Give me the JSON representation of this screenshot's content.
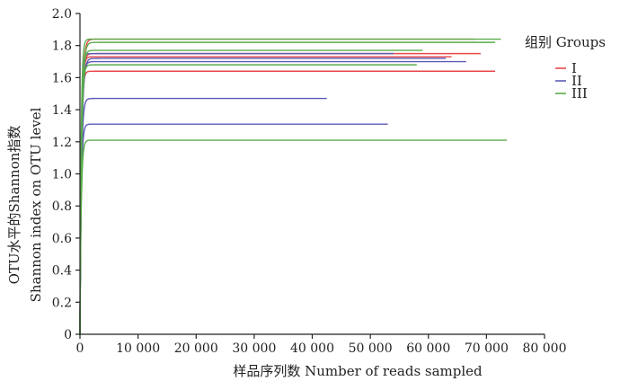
{
  "chart_data": {
    "type": "line",
    "title": "",
    "xlabel": "样品序列数  Number of reads sampled",
    "ylabel_line1": "OTU水平的Shannon指数",
    "ylabel_line2": "Shannon index on  OTU level",
    "xlim": [
      0,
      80000
    ],
    "ylim": [
      0,
      2.0
    ],
    "x_ticks": [
      0,
      10000,
      20000,
      30000,
      40000,
      50000,
      60000,
      70000,
      80000
    ],
    "x_tick_labels": [
      "0",
      "10 000",
      "20 000",
      "30 000",
      "40 000",
      "50 000",
      "60 000",
      "70 000",
      "80 000"
    ],
    "y_ticks": [
      0,
      0.2,
      0.4,
      0.6,
      0.8,
      1.0,
      1.2,
      1.4,
      1.6,
      1.8,
      2.0
    ],
    "y_tick_labels": [
      "0",
      "0.2",
      "0.4",
      "0.6",
      "0.8",
      "1.0",
      "1.2",
      "1.4",
      "1.6",
      "1.8",
      "2.0"
    ],
    "grid": false,
    "legend": {
      "title": "组别  Groups",
      "placement": "right",
      "entries": [
        {
          "label": "I",
          "color": "#e8474a"
        },
        {
          "label": "II",
          "color": "#5b5bb5"
        },
        {
          "label": "III",
          "color": "#5aac4a"
        }
      ]
    },
    "series": [
      {
        "group": "I",
        "color": "#e8474a",
        "plateau": 1.84,
        "max_x": 68000
      },
      {
        "group": "I",
        "color": "#e8474a",
        "plateau": 1.75,
        "max_x": 69000
      },
      {
        "group": "I",
        "color": "#e8474a",
        "plateau": 1.73,
        "max_x": 64000
      },
      {
        "group": "I",
        "color": "#e8474a",
        "plateau": 1.64,
        "max_x": 71500
      },
      {
        "group": "II",
        "color": "#5b5bb5",
        "plateau": 1.75,
        "max_x": 54000
      },
      {
        "group": "II",
        "color": "#5b5bb5",
        "plateau": 1.72,
        "max_x": 63000
      },
      {
        "group": "II",
        "color": "#5b5bb5",
        "plateau": 1.7,
        "max_x": 66500
      },
      {
        "group": "II",
        "color": "#5b5bb5",
        "plateau": 1.47,
        "max_x": 42500
      },
      {
        "group": "II",
        "color": "#5b5bb5",
        "plateau": 1.31,
        "max_x": 53000
      },
      {
        "group": "III",
        "color": "#5aac4a",
        "plateau": 1.84,
        "max_x": 72500
      },
      {
        "group": "III",
        "color": "#5aac4a",
        "plateau": 1.82,
        "max_x": 71500
      },
      {
        "group": "III",
        "color": "#5aac4a",
        "plateau": 1.77,
        "max_x": 59000
      },
      {
        "group": "III",
        "color": "#5aac4a",
        "plateau": 1.68,
        "max_x": 58000
      },
      {
        "group": "III",
        "color": "#5aac4a",
        "plateau": 1.21,
        "max_x": 73500
      }
    ]
  }
}
